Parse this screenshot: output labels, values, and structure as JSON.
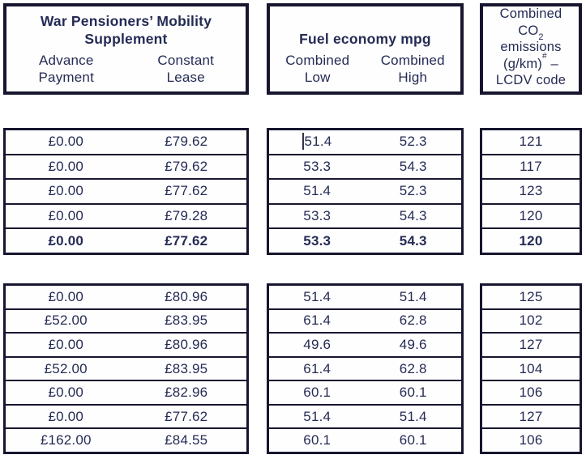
{
  "colors": {
    "ink": "#242b55",
    "border": "#17162f",
    "background": "#ffffff"
  },
  "header": {
    "wpms": {
      "title_line1": "War Pensioners’ Mobility",
      "title_line2": "Supplement",
      "sub1_line1": "Advance",
      "sub1_line2": "Payment",
      "sub2_line1": "Constant",
      "sub2_line2": "Lease"
    },
    "fuel": {
      "title": "Fuel economy mpg",
      "sub1_line1": "Combined",
      "sub1_line2": "Low",
      "sub2_line1": "Combined",
      "sub2_line2": "High"
    },
    "co2": {
      "line1": "Combined",
      "line2_base": "CO",
      "line2_sub": "2",
      "line3": "emissions",
      "line4_base": "(g/km)",
      "line4_sup": "#",
      "line4_dash": " –",
      "line5": "LCDV code"
    }
  },
  "groups": [
    {
      "rows": [
        {
          "advance": "£0.00",
          "lease": "£79.62",
          "low": "51.4",
          "high": "52.3",
          "co2": "121",
          "caret_low": true
        },
        {
          "advance": "£0.00",
          "lease": "£79.62",
          "low": "53.3",
          "high": "54.3",
          "co2": "117"
        },
        {
          "advance": "£0.00",
          "lease": "£77.62",
          "low": "51.4",
          "high": "52.3",
          "co2": "123"
        },
        {
          "advance": "£0.00",
          "lease": "£79.28",
          "low": "53.3",
          "high": "54.3",
          "co2": "120"
        },
        {
          "advance": "£0.00",
          "lease": "£77.62",
          "low": "53.3",
          "high": "54.3",
          "co2": "120",
          "bold": true
        }
      ]
    },
    {
      "rows": [
        {
          "advance": "£0.00",
          "lease": "£80.96",
          "low": "51.4",
          "high": "51.4",
          "co2": "125"
        },
        {
          "advance": "£52.00",
          "lease": "£83.95",
          "low": "61.4",
          "high": "62.8",
          "co2": "102"
        },
        {
          "advance": "£0.00",
          "lease": "£80.96",
          "low": "49.6",
          "high": "49.6",
          "co2": "127"
        },
        {
          "advance": "£52.00",
          "lease": "£83.95",
          "low": "61.4",
          "high": "62.8",
          "co2": "104"
        },
        {
          "advance": "£0.00",
          "lease": "£82.96",
          "low": "60.1",
          "high": "60.1",
          "co2": "106"
        },
        {
          "advance": "£0.00",
          "lease": "£77.62",
          "low": "51.4",
          "high": "51.4",
          "co2": "127"
        },
        {
          "advance": "£162.00",
          "lease": "£84.55",
          "low": "60.1",
          "high": "60.1",
          "co2": "106"
        }
      ]
    }
  ]
}
